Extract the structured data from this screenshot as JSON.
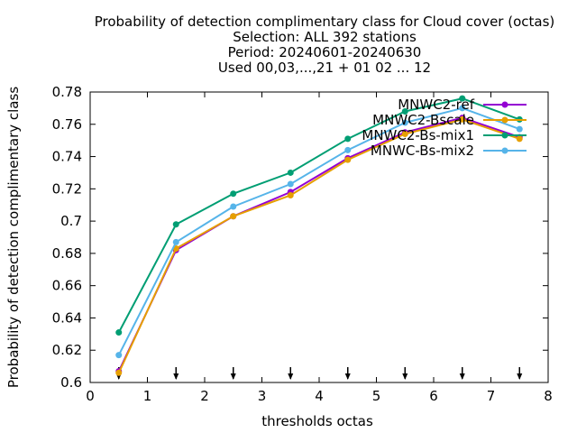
{
  "chart_data": {
    "type": "line",
    "title_lines": [
      "Probability of detection complimentary class  for Cloud cover (octas)",
      "Selection: ALL    392 stations",
      "Period: 20240601-20240630",
      "Used 00,03,...,21 + 01 02 ... 12"
    ],
    "xlabel": "thresholds octas",
    "ylabel": "Probability of detection complimentary class",
    "xlim": [
      0,
      8
    ],
    "ylim": [
      0.6,
      0.78
    ],
    "xticks": [
      "0",
      "1",
      "2",
      "3",
      "4",
      "5",
      "6",
      "7",
      "8"
    ],
    "yticks": [
      "0.6",
      "0.62",
      "0.64",
      "0.66",
      "0.68",
      "0.7",
      "0.72",
      "0.74",
      "0.76",
      "0.78"
    ],
    "x": [
      0.5,
      1.5,
      2.5,
      3.5,
      4.5,
      5.5,
      6.5,
      7.5
    ],
    "arrow_marks_x": [
      0.5,
      1.5,
      2.5,
      3.5,
      4.5,
      5.5,
      6.5,
      7.5
    ],
    "legend_position": "top-right",
    "grid": false,
    "series": [
      {
        "name": "MNWC2-ref",
        "color": "#9400d3",
        "values": [
          0.607,
          0.682,
          0.703,
          0.718,
          0.739,
          0.755,
          0.764,
          0.752
        ]
      },
      {
        "name": "MNWC2-Bscale",
        "color": "#e69f00",
        "values": [
          0.606,
          0.683,
          0.703,
          0.716,
          0.738,
          0.754,
          0.763,
          0.751
        ]
      },
      {
        "name": "MNWC2-Bs-mix1",
        "color": "#009e73",
        "values": [
          0.631,
          0.698,
          0.717,
          0.73,
          0.751,
          0.768,
          0.776,
          0.763
        ]
      },
      {
        "name": "MNWC-Bs-mix2",
        "color": "#56b4e9",
        "values": [
          0.617,
          0.687,
          0.709,
          0.723,
          0.744,
          0.761,
          0.77,
          0.757
        ]
      }
    ]
  }
}
